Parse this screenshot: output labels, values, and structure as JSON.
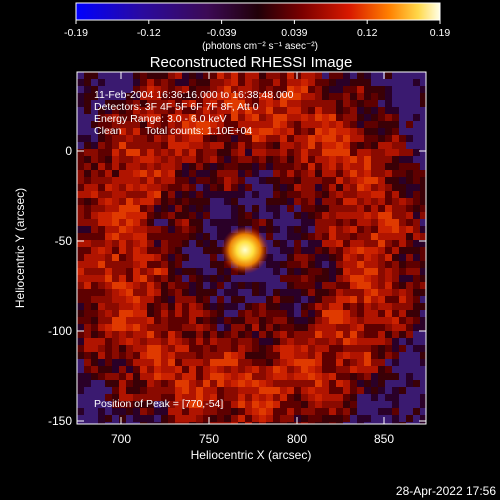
{
  "title": "Reconstructed RHESSI Image",
  "colorbar": {
    "tick_labels": [
      "-0.19",
      "-0.12",
      "-0.039",
      "0.039",
      "0.12",
      "0.19"
    ],
    "unit_label": "(photons cm⁻² s⁻¹ asec⁻²)",
    "range": [
      -0.19,
      0.19
    ]
  },
  "info": {
    "time_range": "11-Feb-2004 16:36:16.000 to 16:38:48.000",
    "detectors": "Detectors: 3F 4F 5F 6F 7F 8F, Att 0",
    "energy_range": "Energy Range: 3.0 - 6.0 keV",
    "algorithm": "Clean",
    "total_counts": "Total counts: 1.10E+04"
  },
  "peak_label": "Position of Peak = [770,-54]",
  "peak": {
    "x": 770,
    "y": -54
  },
  "axes": {
    "xlabel": "Heliocentric X (arcsec)",
    "ylabel": "Heliocentric Y (arcsec)",
    "xlim": [
      677,
      867
    ],
    "ylim": [
      -151,
      38
    ],
    "x_ticks": [
      "700",
      "750",
      "800",
      "850"
    ],
    "y_ticks": [
      "0",
      "-50",
      "-100",
      "-150"
    ]
  },
  "timestamp": "28-Apr-2022 17:56",
  "colors": {
    "background": "#000000",
    "foreground": "#ffffff",
    "peak_core": "#ffffb0"
  }
}
